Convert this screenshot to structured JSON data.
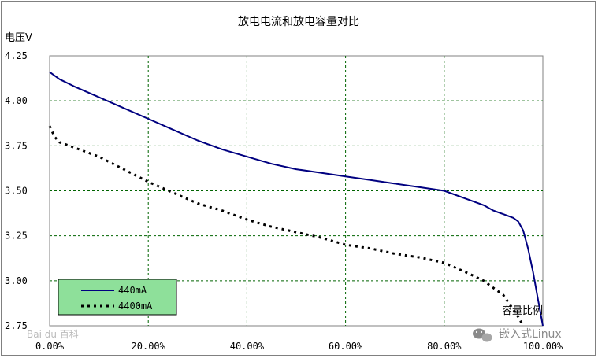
{
  "chart_data": {
    "type": "line",
    "title": "放电电流和放电容量对比",
    "xlabel": "容量比例",
    "ylabel": "电压V",
    "xlim": [
      0,
      100
    ],
    "ylim": [
      2.75,
      4.25
    ],
    "x_ticks": [
      "0.00%",
      "20.00%",
      "40.00%",
      "60.00%",
      "80.00%",
      "100.00%"
    ],
    "y_ticks": [
      "4.25",
      "4.00",
      "3.75",
      "3.50",
      "3.25",
      "3.00",
      "2.75"
    ],
    "grid": true,
    "legend_position": "bottom-left",
    "series": [
      {
        "name": "440mA",
        "color": "#000080",
        "style": "solid",
        "x": [
          0,
          2,
          5,
          10,
          15,
          20,
          25,
          30,
          35,
          40,
          45,
          50,
          55,
          60,
          65,
          70,
          75,
          80,
          85,
          88,
          90,
          92,
          94,
          95,
          96,
          97,
          98,
          99,
          100
        ],
        "y": [
          4.16,
          4.12,
          4.08,
          4.02,
          3.96,
          3.9,
          3.84,
          3.78,
          3.73,
          3.69,
          3.65,
          3.62,
          3.6,
          3.58,
          3.56,
          3.54,
          3.52,
          3.5,
          3.45,
          3.42,
          3.39,
          3.37,
          3.35,
          3.33,
          3.28,
          3.18,
          3.05,
          2.9,
          2.75
        ]
      },
      {
        "name": "4400mA",
        "color": "#000000",
        "style": "dotted",
        "x": [
          0,
          1,
          2,
          3,
          5,
          10,
          15,
          20,
          25,
          30,
          35,
          40,
          45,
          50,
          55,
          60,
          65,
          70,
          75,
          80,
          85,
          88,
          90,
          92,
          93,
          94,
          95,
          96
        ],
        "y": [
          3.86,
          3.8,
          3.77,
          3.76,
          3.74,
          3.69,
          3.62,
          3.55,
          3.49,
          3.43,
          3.39,
          3.34,
          3.3,
          3.27,
          3.24,
          3.2,
          3.18,
          3.15,
          3.13,
          3.1,
          3.04,
          3.0,
          2.96,
          2.92,
          2.88,
          2.84,
          2.8,
          2.75
        ]
      }
    ]
  },
  "watermarks": {
    "baidu": "Bai du 百科",
    "account": "嵌入式Linux"
  }
}
